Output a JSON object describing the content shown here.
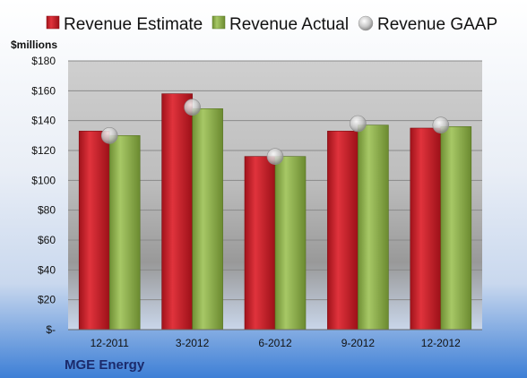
{
  "chart_data": {
    "type": "bar",
    "title": "",
    "ylabel": "$millions",
    "company": "MGE Energy",
    "categories": [
      "12-2011",
      "3-2012",
      "6-2012",
      "9-2012",
      "12-2012"
    ],
    "ylim": [
      0,
      180
    ],
    "yticks": [
      0,
      20,
      40,
      60,
      80,
      100,
      120,
      140,
      160,
      180
    ],
    "ytick_labels": [
      "$-",
      "$20",
      "$40",
      "$60",
      "$80",
      "$100",
      "$120",
      "$140",
      "$160",
      "$180"
    ],
    "grid": true,
    "legend_position": "top",
    "series": [
      {
        "name": "Revenue Estimate",
        "type": "bar",
        "color": "#c8202a",
        "values": [
          133,
          158,
          116,
          133,
          135
        ]
      },
      {
        "name": "Revenue Actual",
        "type": "bar",
        "color": "#8fb24e",
        "values": [
          130,
          148,
          116,
          137,
          136
        ]
      },
      {
        "name": "Revenue GAAP",
        "type": "marker",
        "color": "#c8c8c8",
        "values": [
          130,
          149,
          116,
          138,
          137
        ]
      }
    ]
  }
}
